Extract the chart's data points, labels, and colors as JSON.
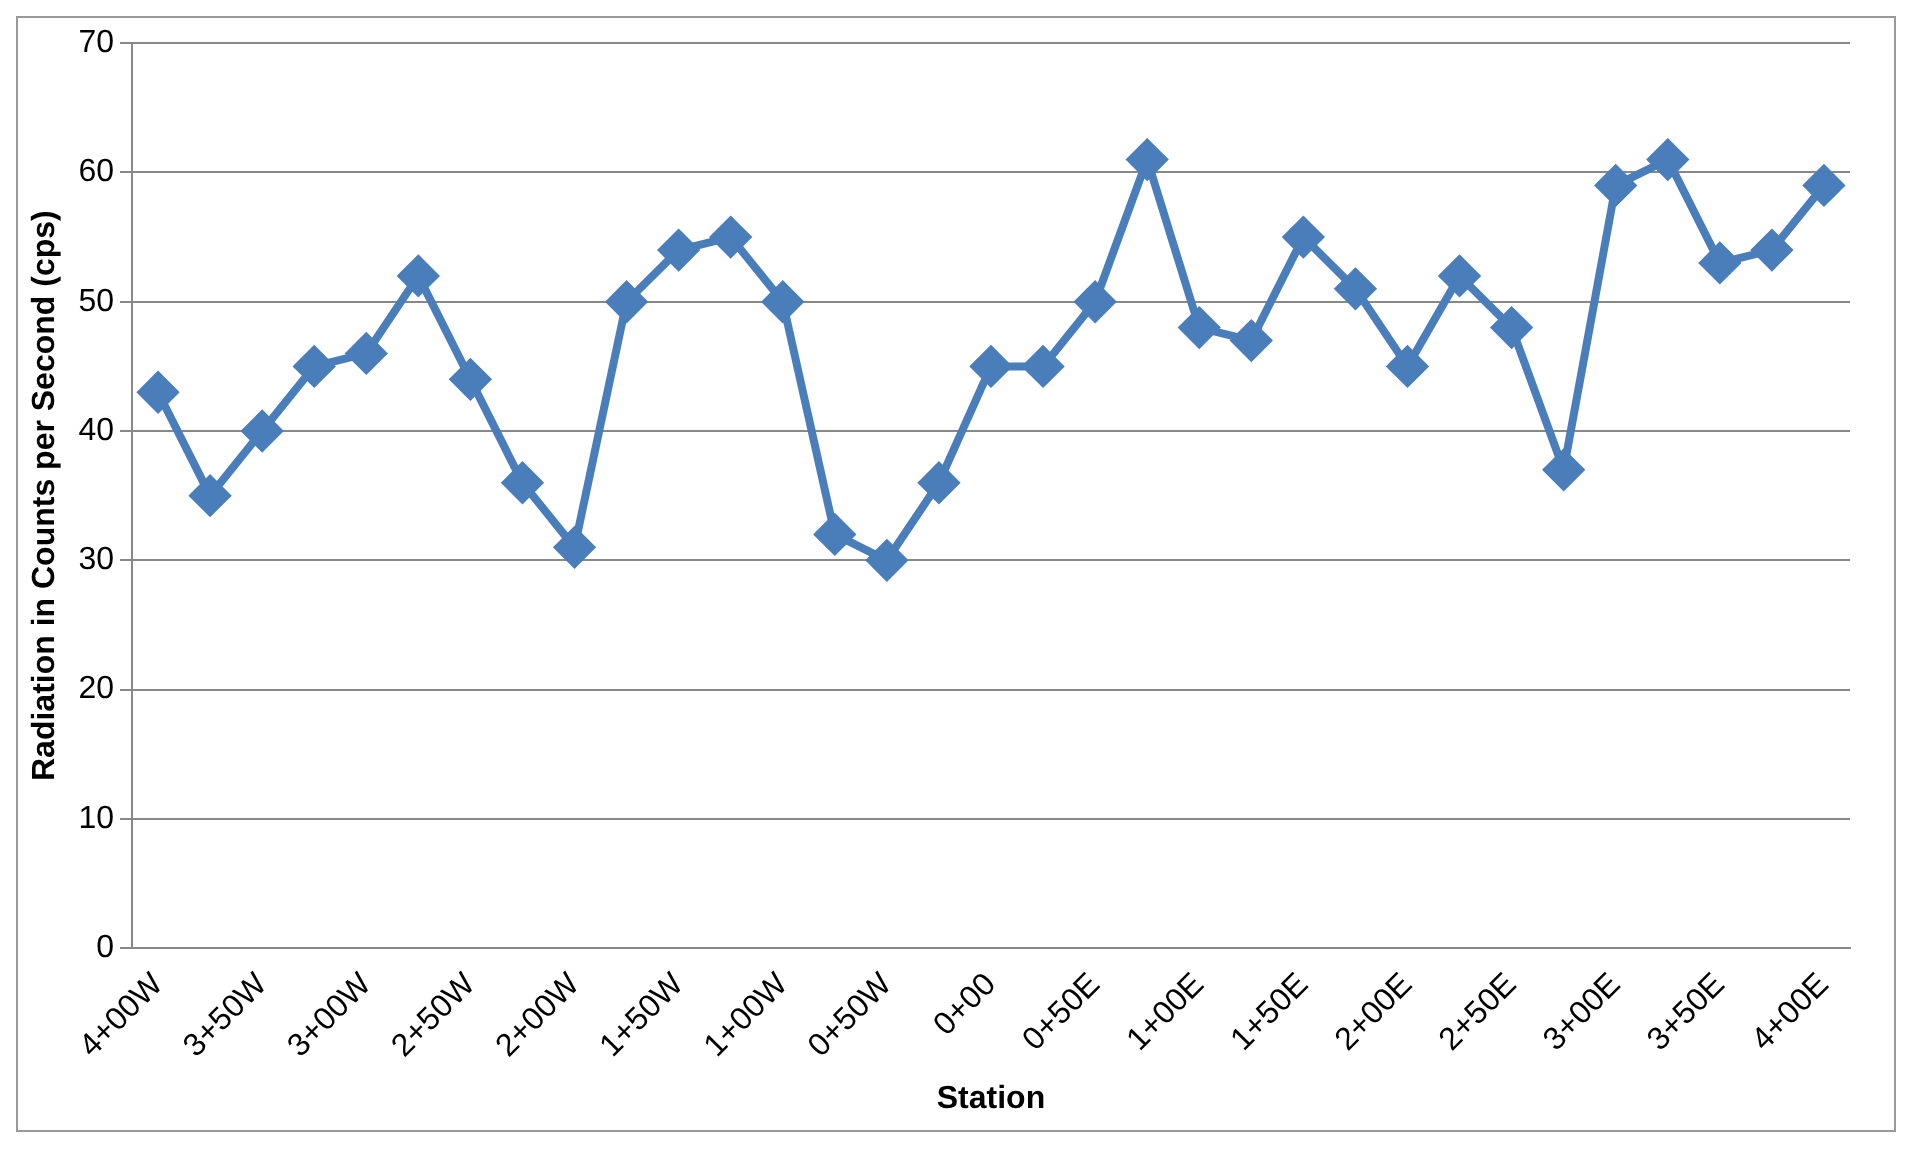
{
  "chart_data": {
    "type": "line",
    "xlabel": "Station",
    "ylabel": "Radiation in Counts per Second (cps)",
    "categories": [
      "4+00W",
      null,
      "3+50W",
      null,
      "3+00W",
      null,
      "2+50W",
      null,
      "2+00W",
      null,
      "1+50W",
      null,
      "1+00W",
      null,
      "0+50W",
      null,
      "0+00",
      null,
      "0+50E",
      null,
      "1+00E",
      null,
      "1+50E",
      null,
      "2+00E",
      null,
      "2+50E",
      null,
      "3+00E",
      null,
      "3+50E",
      null,
      "4+00E"
    ],
    "series": [
      {
        "color": "#4a7ebb",
        "values": [
          43,
          35,
          40,
          45,
          46,
          52,
          44,
          36,
          31,
          50,
          54,
          55,
          50,
          32,
          30,
          36,
          45,
          45,
          50,
          61,
          48,
          47,
          55,
          51,
          45,
          52,
          48,
          37,
          59,
          61,
          53,
          54,
          59
        ]
      }
    ],
    "ylim": [
      0,
      70
    ],
    "yticks": [
      0,
      10,
      20,
      30,
      40,
      50,
      60,
      70
    ],
    "grid": "y",
    "legend": false,
    "marker": "diamond",
    "line_style": "solid"
  }
}
